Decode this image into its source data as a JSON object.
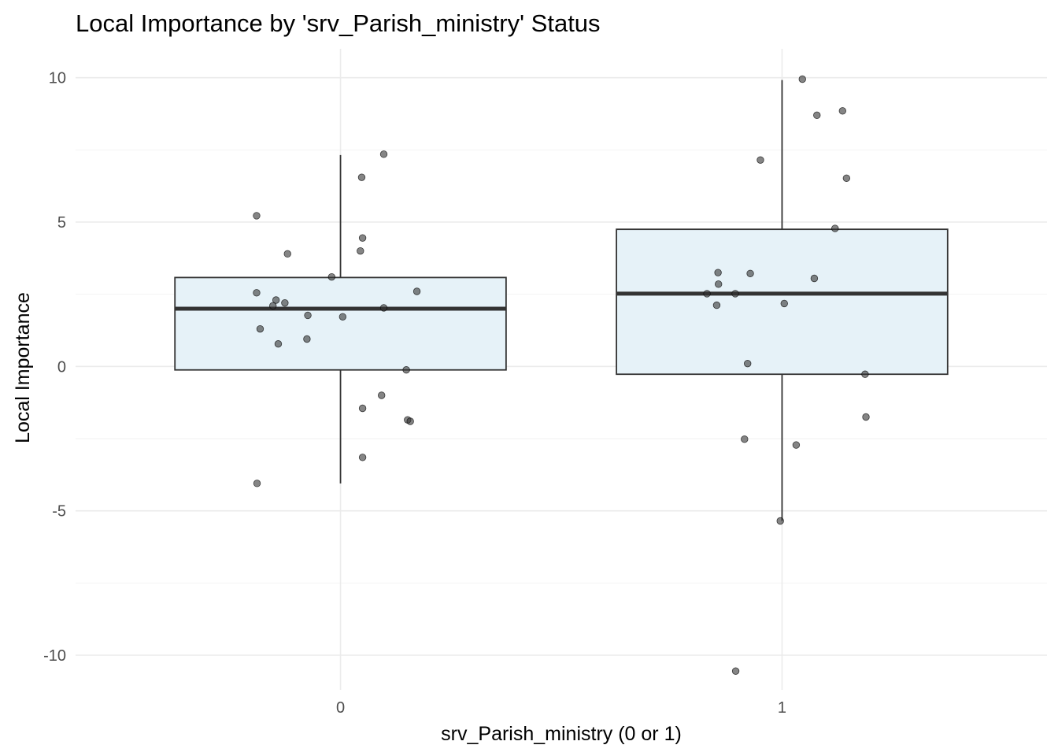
{
  "chart_data": {
    "type": "box",
    "title": "Local Importance by 'srv_Parish_ministry' Status",
    "xlabel": "srv_Parish_ministry (0 or 1)",
    "ylabel": "Local Importance",
    "categories": [
      "0",
      "1"
    ],
    "ylim": [
      -11.2,
      11.0
    ],
    "yticks": [
      10,
      5,
      0,
      -5,
      -10
    ],
    "ytick_labels": [
      "10",
      "5",
      "0",
      "-5",
      "-10"
    ],
    "grid": true,
    "legend": "none",
    "box_fill": "#e6f2f8",
    "box_stroke": "#333333",
    "point_color": "#333333",
    "boxes": [
      {
        "category": "0",
        "lower_whisker": -4.05,
        "q1": -0.12,
        "median": 2.0,
        "q3": 3.08,
        "upper_whisker": 7.32
      },
      {
        "category": "1",
        "lower_whisker": -5.35,
        "q1": -0.27,
        "median": 2.52,
        "q3": 4.75,
        "upper_whisker": 9.92
      }
    ],
    "points": [
      {
        "category": "0",
        "jitter": -0.19,
        "y": 5.22
      },
      {
        "category": "0",
        "jitter": -0.12,
        "y": 3.9
      },
      {
        "category": "0",
        "jitter": -0.02,
        "y": 3.1
      },
      {
        "category": "0",
        "jitter": -0.19,
        "y": 2.55
      },
      {
        "category": "0",
        "jitter": -0.146,
        "y": 2.3
      },
      {
        "category": "0",
        "jitter": -0.126,
        "y": 2.2
      },
      {
        "category": "0",
        "jitter": -0.153,
        "y": 2.1
      },
      {
        "category": "0",
        "jitter": -0.074,
        "y": 1.77
      },
      {
        "category": "0",
        "jitter": 0.005,
        "y": 1.72
      },
      {
        "category": "0",
        "jitter": -0.182,
        "y": 1.3
      },
      {
        "category": "0",
        "jitter": -0.076,
        "y": 0.95
      },
      {
        "category": "0",
        "jitter": -0.141,
        "y": 0.78
      },
      {
        "category": "0",
        "jitter": 0.048,
        "y": 6.55
      },
      {
        "category": "0",
        "jitter": 0.098,
        "y": 7.35
      },
      {
        "category": "0",
        "jitter": 0.05,
        "y": 4.45
      },
      {
        "category": "0",
        "jitter": 0.045,
        "y": 4.0
      },
      {
        "category": "0",
        "jitter": 0.098,
        "y": 2.03
      },
      {
        "category": "0",
        "jitter": 0.173,
        "y": 2.6
      },
      {
        "category": "0",
        "jitter": 0.149,
        "y": -0.12
      },
      {
        "category": "0",
        "jitter": 0.093,
        "y": -1.0
      },
      {
        "category": "0",
        "jitter": 0.05,
        "y": -1.45
      },
      {
        "category": "0",
        "jitter": 0.152,
        "y": -1.85
      },
      {
        "category": "0",
        "jitter": 0.158,
        "y": -1.9
      },
      {
        "category": "0",
        "jitter": 0.05,
        "y": -3.15
      },
      {
        "category": "0",
        "jitter": -0.189,
        "y": -4.05
      },
      {
        "category": "1",
        "jitter": 0.046,
        "y": 9.95
      },
      {
        "category": "1",
        "jitter": 0.079,
        "y": 8.7
      },
      {
        "category": "1",
        "jitter": 0.137,
        "y": 8.85
      },
      {
        "category": "1",
        "jitter": -0.049,
        "y": 7.15
      },
      {
        "category": "1",
        "jitter": 0.146,
        "y": 6.52
      },
      {
        "category": "1",
        "jitter": 0.12,
        "y": 4.78
      },
      {
        "category": "1",
        "jitter": -0.145,
        "y": 3.25
      },
      {
        "category": "1",
        "jitter": -0.072,
        "y": 3.22
      },
      {
        "category": "1",
        "jitter": 0.073,
        "y": 3.05
      },
      {
        "category": "1",
        "jitter": -0.144,
        "y": 2.85
      },
      {
        "category": "1",
        "jitter": -0.17,
        "y": 2.52
      },
      {
        "category": "1",
        "jitter": -0.106,
        "y": 2.52
      },
      {
        "category": "1",
        "jitter": 0.005,
        "y": 2.18
      },
      {
        "category": "1",
        "jitter": -0.148,
        "y": 2.12
      },
      {
        "category": "1",
        "jitter": -0.078,
        "y": 0.1
      },
      {
        "category": "1",
        "jitter": 0.188,
        "y": -0.27
      },
      {
        "category": "1",
        "jitter": 0.19,
        "y": -1.75
      },
      {
        "category": "1",
        "jitter": -0.085,
        "y": -2.52
      },
      {
        "category": "1",
        "jitter": 0.032,
        "y": -2.72
      },
      {
        "category": "1",
        "jitter": -0.004,
        "y": -5.35
      },
      {
        "category": "1",
        "jitter": -0.105,
        "y": -10.55
      }
    ]
  }
}
